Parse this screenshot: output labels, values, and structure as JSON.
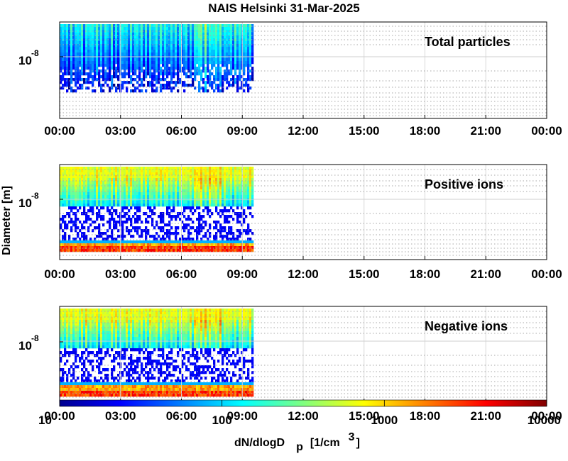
{
  "chart_data": [
    {
      "type": "heatmap",
      "label": "Total particles",
      "x_ticks": [
        "00:00",
        "03:00",
        "06:00",
        "09:00",
        "12:00",
        "15:00",
        "18:00",
        "21:00",
        "00:00"
      ],
      "y_tick_base": "10",
      "y_tick_exp": "-8",
      "data_end_hour": 9.5,
      "y_scale": "log",
      "grid": true
    },
    {
      "type": "heatmap",
      "label": "Positive ions",
      "x_ticks": [
        "00:00",
        "03:00",
        "06:00",
        "09:00",
        "12:00",
        "15:00",
        "18:00",
        "21:00",
        "00:00"
      ],
      "y_tick_base": "10",
      "y_tick_exp": "-8",
      "data_end_hour": 9.5,
      "y_scale": "log",
      "grid": true
    },
    {
      "type": "heatmap",
      "label": "Negative ions",
      "x_ticks": [
        "00:00",
        "03:00",
        "06:00",
        "09:00",
        "12:00",
        "15:00",
        "18:00",
        "21:00",
        "00:00"
      ],
      "y_tick_base": "10",
      "y_tick_exp": "-8",
      "data_end_hour": 9.5,
      "y_scale": "log",
      "grid": true
    }
  ],
  "title": "NAIS Helsinki 31-Mar-2025",
  "ylabel": "Diameter [m]",
  "colorbar": {
    "scale": "log",
    "ticks": [
      "10",
      "100",
      "1000",
      "10000"
    ],
    "label_main": "dN/dlogD",
    "label_sub": "p",
    "label_units": "[1/cm",
    "label_units_exp": "3",
    "label_close": "]",
    "colormap": "jet"
  },
  "bottom_x_ticks": [
    "00:00",
    "03:00",
    "06:00",
    "09:00",
    "12:00",
    "15:00",
    "18:00",
    "21:00",
    "00:00"
  ]
}
